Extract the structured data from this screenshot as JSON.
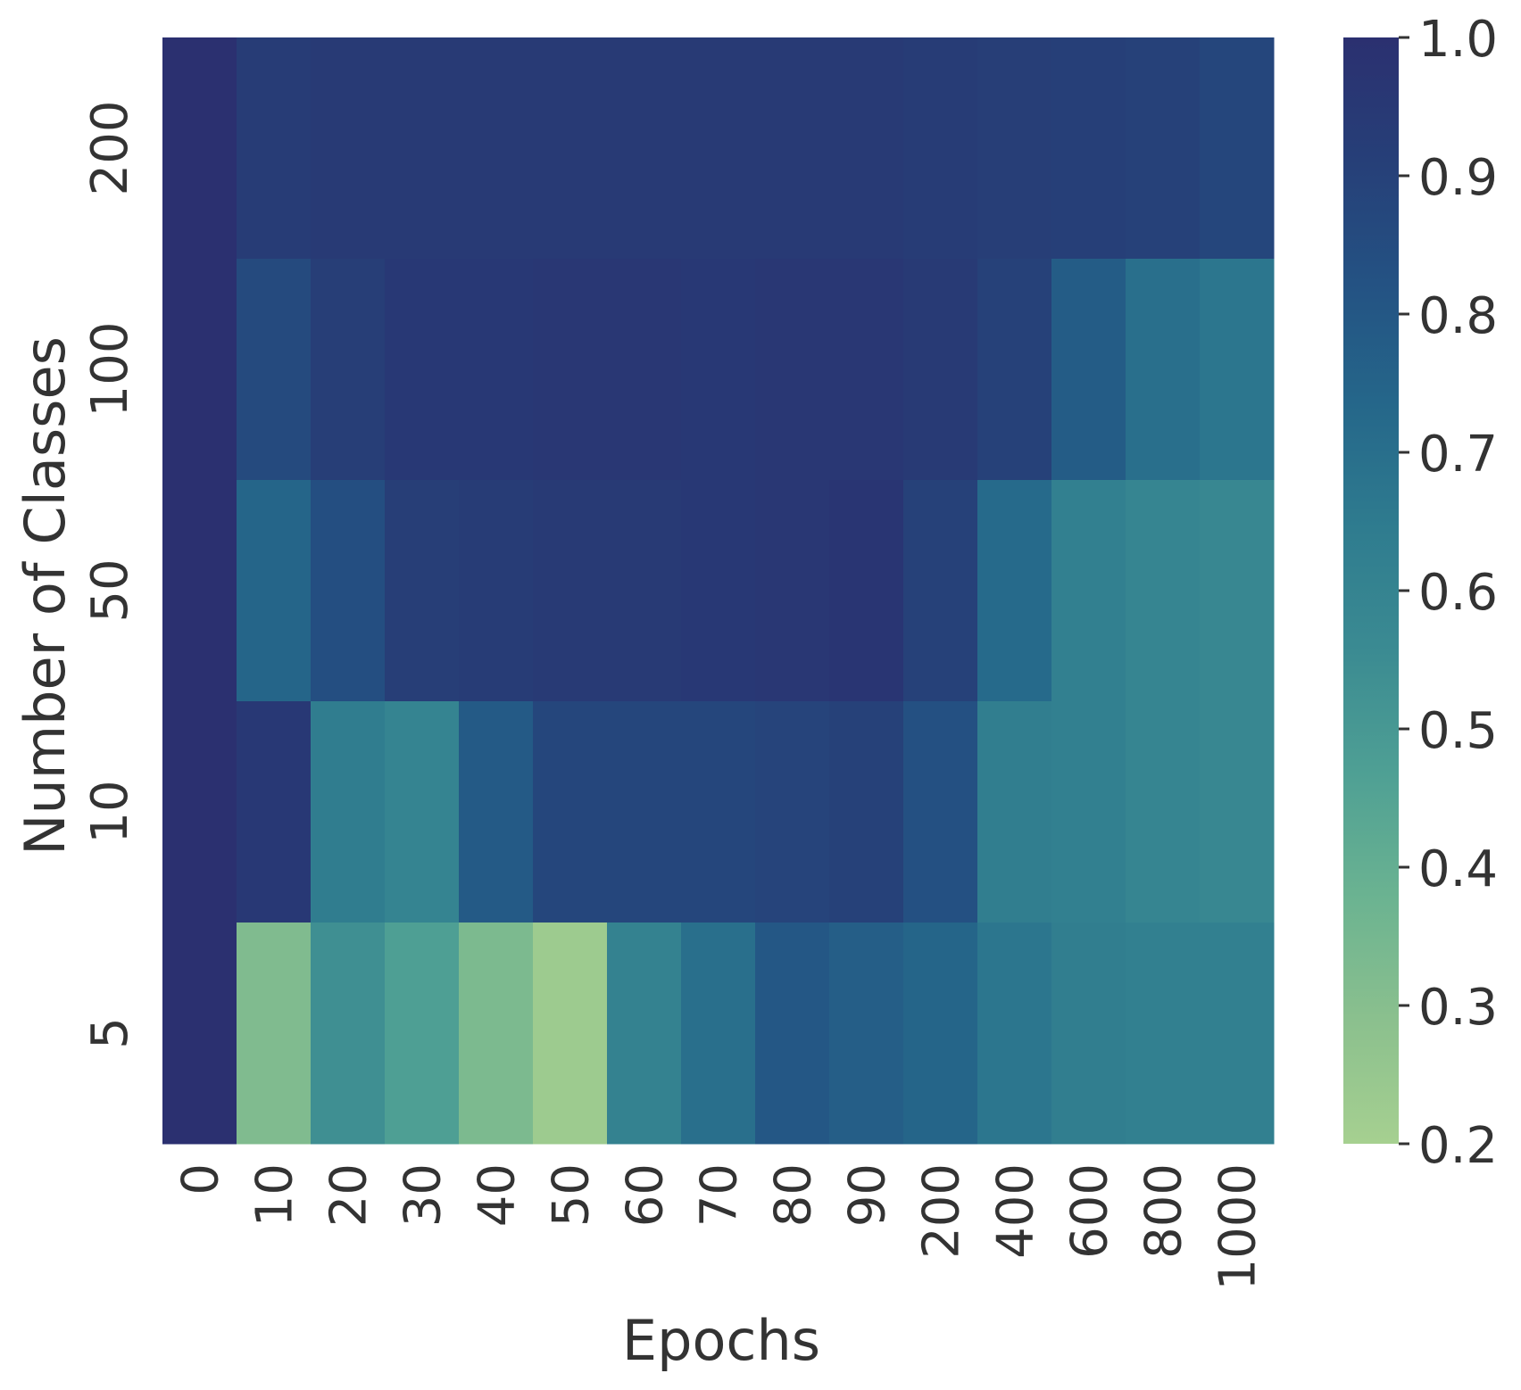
{
  "chart_data": {
    "type": "heatmap",
    "title": "",
    "xlabel": "Epochs",
    "ylabel": "Number of Classes",
    "x_categories": [
      "0",
      "10",
      "20",
      "30",
      "40",
      "50",
      "60",
      "70",
      "80",
      "90",
      "200",
      "400",
      "600",
      "800",
      "1000"
    ],
    "y_categories": [
      "200",
      "100",
      "50",
      "10",
      "5"
    ],
    "values": [
      [
        1.0,
        0.93,
        0.94,
        0.94,
        0.94,
        0.94,
        0.94,
        0.94,
        0.94,
        0.94,
        0.93,
        0.92,
        0.91,
        0.9,
        0.88
      ],
      [
        1.0,
        0.86,
        0.92,
        0.95,
        0.95,
        0.96,
        0.96,
        0.95,
        0.96,
        0.96,
        0.94,
        0.9,
        0.78,
        0.7,
        0.67
      ],
      [
        1.0,
        0.74,
        0.84,
        0.92,
        0.93,
        0.94,
        0.94,
        0.95,
        0.96,
        0.97,
        0.9,
        0.72,
        0.62,
        0.59,
        0.58
      ],
      [
        1.0,
        0.95,
        0.64,
        0.6,
        0.79,
        0.88,
        0.88,
        0.88,
        0.89,
        0.9,
        0.83,
        0.63,
        0.62,
        0.59,
        0.58
      ],
      [
        1.0,
        0.32,
        0.54,
        0.47,
        0.33,
        0.23,
        0.61,
        0.7,
        0.8,
        0.77,
        0.74,
        0.67,
        0.63,
        0.62,
        0.62
      ]
    ],
    "colorbar": {
      "min": 0.2,
      "max": 1.0,
      "ticks": [
        "0.2",
        "0.3",
        "0.4",
        "0.5",
        "0.6",
        "0.7",
        "0.8",
        "0.9",
        "1.0"
      ]
    },
    "colormap": [
      "#a6d090",
      "#8bc08e",
      "#6bb391",
      "#4fa094",
      "#3b8b92",
      "#2f7c8f",
      "#25678a",
      "#245283",
      "#263f78",
      "#2b3070"
    ],
    "grid": false,
    "legend": "colorbar-right"
  }
}
